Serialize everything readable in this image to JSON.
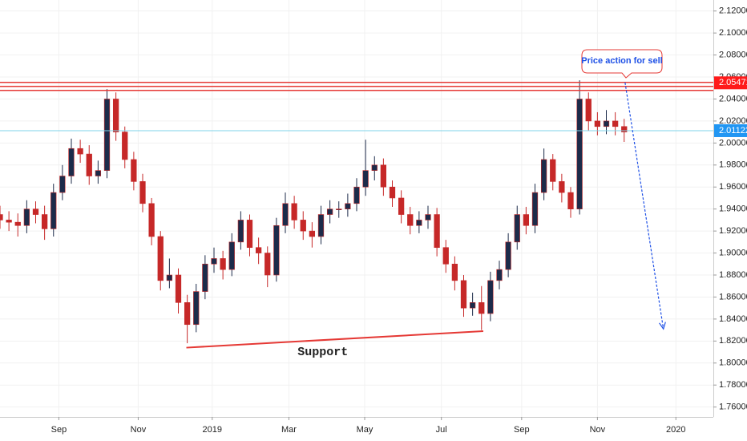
{
  "chart_data": {
    "type": "candlestick",
    "up_color": "#1c2b4a",
    "down_color": "#c62828",
    "xlim": [
      0,
      80
    ],
    "xticks": [
      {
        "value": 6.6,
        "label": "Sep"
      },
      {
        "value": 15.5,
        "label": "Nov"
      },
      {
        "value": 23.8,
        "label": "2019"
      },
      {
        "value": 32.4,
        "label": "Mar"
      },
      {
        "value": 40.9,
        "label": "May"
      },
      {
        "value": 49.5,
        "label": "Jul"
      },
      {
        "value": 58.5,
        "label": "Sep"
      },
      {
        "value": 67,
        "label": "Nov"
      },
      {
        "value": 75.8,
        "label": "2020"
      }
    ],
    "ylim": [
      1.751,
      2.13
    ],
    "yticks": [
      {
        "value": 2.12,
        "label": "2.12000"
      },
      {
        "value": 2.1,
        "label": "2.10000"
      },
      {
        "value": 2.08,
        "label": "2.08000"
      },
      {
        "value": 2.06,
        "label": "2.06000"
      },
      {
        "value": 2.04,
        "label": "2.04000"
      },
      {
        "value": 2.02,
        "label": "2.02000"
      },
      {
        "value": 2.0,
        "label": "2.00000"
      },
      {
        "value": 1.98,
        "label": "1.98000"
      },
      {
        "value": 1.96,
        "label": "1.96000"
      },
      {
        "value": 1.94,
        "label": "1.94000"
      },
      {
        "value": 1.92,
        "label": "1.92000"
      },
      {
        "value": 1.9,
        "label": "1.90000"
      },
      {
        "value": 1.88,
        "label": "1.88000"
      },
      {
        "value": 1.86,
        "label": "1.86000"
      },
      {
        "value": 1.84,
        "label": "1.84000"
      },
      {
        "value": 1.82,
        "label": "1.82000"
      },
      {
        "value": 1.8,
        "label": "1.80000"
      },
      {
        "value": 1.78,
        "label": "1.78000"
      },
      {
        "value": 1.76,
        "label": "1.76000"
      }
    ],
    "series": {
      "open": [
        1.935,
        1.93,
        1.928,
        1.925,
        1.94,
        1.935,
        1.922,
        1.955,
        1.97,
        1.995,
        1.99,
        1.97,
        1.975,
        2.04,
        2.01,
        1.985,
        1.965,
        1.945,
        1.915,
        1.875,
        1.88,
        1.855,
        1.835,
        1.865,
        1.89,
        1.895,
        1.885,
        1.91,
        1.93,
        1.905,
        1.9,
        1.88,
        1.925,
        1.945,
        1.93,
        1.92,
        1.915,
        1.935,
        1.94,
        1.94,
        1.945,
        1.96,
        1.975,
        1.98,
        1.96,
        1.95,
        1.935,
        1.925,
        1.93,
        1.935,
        1.905,
        1.89,
        1.875,
        1.85,
        1.855,
        1.845,
        1.875,
        1.885,
        1.91,
        1.935,
        1.925,
        1.955,
        1.985,
        1.965,
        1.955,
        1.94,
        2.04,
        2.02,
        2.015,
        2.02,
        2.015
      ],
      "high": [
        1.943,
        1.938,
        1.936,
        1.948,
        1.947,
        1.943,
        1.963,
        1.98,
        2.004,
        2.003,
        1.998,
        1.984,
        2.049,
        2.046,
        2.015,
        1.992,
        1.972,
        1.95,
        1.92,
        1.895,
        1.886,
        1.862,
        1.872,
        1.898,
        1.905,
        1.902,
        1.918,
        1.938,
        1.935,
        1.914,
        1.906,
        1.932,
        1.955,
        1.952,
        1.938,
        1.928,
        1.943,
        1.948,
        1.947,
        1.954,
        1.968,
        2.003,
        1.988,
        1.986,
        1.966,
        1.957,
        1.942,
        1.938,
        1.943,
        1.941,
        1.912,
        1.897,
        1.88,
        1.864,
        1.87,
        1.883,
        1.893,
        1.918,
        1.943,
        1.942,
        1.963,
        1.995,
        1.99,
        1.972,
        1.96,
        2.057,
        2.046,
        2.028,
        2.03,
        2.028,
        2.022
      ],
      "low": [
        1.922,
        1.92,
        1.915,
        1.918,
        1.927,
        1.912,
        1.915,
        1.948,
        1.963,
        1.982,
        1.962,
        1.963,
        1.968,
        2.002,
        1.977,
        1.957,
        1.937,
        1.907,
        1.866,
        1.868,
        1.845,
        1.818,
        1.828,
        1.858,
        1.882,
        1.876,
        1.879,
        1.903,
        1.897,
        1.89,
        1.869,
        1.874,
        1.918,
        1.922,
        1.912,
        1.905,
        1.908,
        1.927,
        1.932,
        1.933,
        1.938,
        1.952,
        1.966,
        1.952,
        1.942,
        1.927,
        1.917,
        1.918,
        1.922,
        1.897,
        1.882,
        1.866,
        1.842,
        1.843,
        1.83,
        1.838,
        1.867,
        1.878,
        1.903,
        1.917,
        1.918,
        1.948,
        1.957,
        1.946,
        1.932,
        1.935,
        2.011,
        2.007,
        2.008,
        2.007,
        2.001
      ],
      "close": [
        1.93,
        1.928,
        1.925,
        1.94,
        1.935,
        1.922,
        1.955,
        1.97,
        1.995,
        1.99,
        1.97,
        1.975,
        2.04,
        2.01,
        1.985,
        1.965,
        1.945,
        1.915,
        1.875,
        1.88,
        1.855,
        1.835,
        1.865,
        1.89,
        1.895,
        1.885,
        1.91,
        1.93,
        1.905,
        1.9,
        1.88,
        1.925,
        1.945,
        1.93,
        1.92,
        1.915,
        1.935,
        1.94,
        1.94,
        1.945,
        1.96,
        1.975,
        1.98,
        1.96,
        1.95,
        1.935,
        1.925,
        1.93,
        1.935,
        1.905,
        1.89,
        1.875,
        1.85,
        1.855,
        1.845,
        1.875,
        1.885,
        1.91,
        1.935,
        1.925,
        1.955,
        1.985,
        1.965,
        1.955,
        1.94,
        2.04,
        2.02,
        2.015,
        2.02,
        2.015,
        2.01
      ]
    },
    "resistance_lines": [
      2.0551,
      2.0515,
      2.0478
    ],
    "resistance_color": "#e53935",
    "price_labels": [
      {
        "value": 2.05471,
        "color": "#ff1a1a"
      },
      {
        "value": 2.01122,
        "color": "#2196f3"
      }
    ],
    "support": {
      "label": "Support",
      "x": [
        20.9,
        54.2
      ],
      "y": [
        1.814,
        1.829
      ],
      "color": "#e53935"
    },
    "arrow": {
      "x": [
        70.1,
        74.4
      ],
      "y": [
        2.055,
        1.831
      ],
      "color": "#1e50e6"
    },
    "callout": {
      "text": "Price action for sell"
    }
  }
}
